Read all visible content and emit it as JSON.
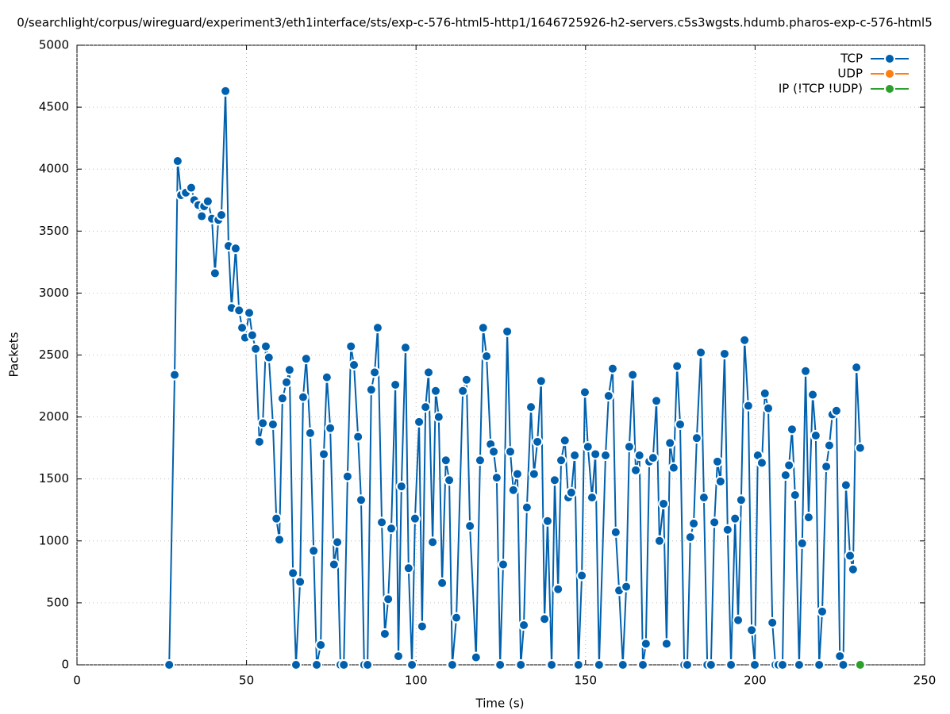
{
  "chart_data": {
    "type": "line",
    "title": "0/searchlight/corpus/wireguard/experiment3/eth1interface/sts/exp-c-576-html5-http1/1646725926-h2-servers.c5s3wgsts.hdumb.pharos-exp-c-576-html5",
    "x_label": "Time (s)",
    "y_label": "Packets",
    "xlim": [
      0,
      250
    ],
    "ylim": [
      0,
      5000
    ],
    "xticks": [
      0,
      50,
      100,
      150,
      200,
      250
    ],
    "yticks": [
      0,
      500,
      1000,
      1500,
      2000,
      2500,
      3000,
      3500,
      4000,
      4500,
      5000
    ],
    "grid": true,
    "legend": "top-right",
    "series": [
      {
        "name": "TCP",
        "color": "#0060ad",
        "x": [
          27.2,
          28.8,
          29.7,
          30.7,
          32.1,
          33.7,
          34.6,
          35.8,
          36.8,
          37.5,
          38.6,
          39.8,
          40.7,
          41.7,
          42.6,
          43.8,
          44.7,
          45.6,
          46.8,
          47.8,
          48.7,
          49.6,
          50.8,
          51.7,
          52.7,
          53.8,
          54.8,
          55.7,
          56.6,
          57.8,
          58.8,
          59.7,
          60.6,
          61.8,
          62.7,
          63.7,
          64.6,
          65.8,
          66.7,
          67.6,
          68.8,
          69.8,
          70.7,
          71.9,
          72.8,
          73.7,
          74.7,
          75.8,
          76.8,
          77.7,
          78.7,
          79.8,
          80.8,
          81.7,
          82.9,
          83.8,
          84.7,
          85.7,
          86.8,
          87.8,
          88.7,
          89.9,
          90.8,
          91.8,
          92.7,
          93.9,
          94.8,
          95.7,
          96.9,
          97.8,
          98.8,
          99.7,
          100.9,
          101.8,
          102.8,
          103.7,
          104.9,
          105.8,
          106.7,
          107.7,
          108.8,
          109.8,
          110.7,
          111.9,
          113.8,
          114.9,
          115.9,
          117.7,
          118.9,
          119.8,
          120.8,
          122.0,
          122.9,
          123.8,
          124.8,
          125.7,
          126.9,
          127.8,
          128.7,
          129.9,
          130.9,
          131.8,
          132.7,
          133.9,
          134.8,
          135.8,
          136.9,
          137.9,
          138.8,
          140.0,
          140.9,
          141.9,
          142.8,
          143.9,
          144.9,
          145.8,
          146.8,
          147.9,
          148.9,
          149.8,
          150.7,
          151.9,
          152.9,
          154.0,
          155.9,
          156.8,
          158.0,
          158.9,
          159.9,
          161.0,
          162.0,
          162.9,
          163.9,
          164.8,
          165.9,
          166.9,
          167.8,
          168.8,
          169.9,
          170.9,
          171.8,
          173.0,
          173.9,
          174.9,
          176.0,
          177.0,
          177.9,
          179.1,
          180.0,
          180.9,
          181.9,
          182.8,
          184.0,
          184.9,
          185.9,
          187.0,
          188.0,
          188.9,
          189.8,
          191.0,
          191.9,
          192.9,
          194.1,
          195.0,
          195.9,
          196.9,
          198.0,
          199.0,
          199.9,
          200.8,
          202.0,
          202.9,
          203.9,
          205.1,
          206.0,
          206.9,
          208.1,
          209.0,
          210.0,
          210.9,
          211.8,
          213.0,
          213.9,
          214.9,
          215.8,
          217.0,
          217.9,
          218.9,
          219.8,
          221.0,
          221.9,
          222.8,
          224.0,
          225.0,
          226.0,
          226.8,
          228.0,
          228.9,
          229.9,
          231.0
        ],
        "values": [
          0,
          2340,
          4065,
          3790,
          3810,
          3850,
          3750,
          3710,
          3620,
          3700,
          3740,
          3600,
          3160,
          3590,
          3630,
          4630,
          3380,
          2880,
          3360,
          2860,
          2720,
          2640,
          2840,
          2660,
          2550,
          1800,
          1950,
          2570,
          2480,
          1940,
          1180,
          1010,
          2150,
          2280,
          2380,
          740,
          0,
          670,
          2160,
          2470,
          1870,
          920,
          0,
          160,
          1700,
          2320,
          1910,
          810,
          990,
          0,
          0,
          1520,
          2570,
          2420,
          1840,
          1330,
          0,
          0,
          2220,
          2360,
          2720,
          1150,
          250,
          530,
          1100,
          2260,
          70,
          1440,
          2560,
          780,
          0,
          1180,
          1960,
          310,
          2080,
          2360,
          990,
          2210,
          2000,
          660,
          1650,
          1490,
          0,
          380,
          2210,
          2300,
          1120,
          60,
          1650,
          2720,
          2490,
          1780,
          1720,
          1510,
          0,
          810,
          2690,
          1720,
          1410,
          1540,
          0,
          320,
          1270,
          2080,
          1540,
          1800,
          2290,
          370,
          1160,
          0,
          1490,
          610,
          1650,
          1810,
          1350,
          1390,
          1690,
          0,
          720,
          2200,
          1760,
          1350,
          1700,
          0,
          1690,
          2170,
          2390,
          1070,
          600,
          0,
          630,
          1760,
          2340,
          1570,
          1690,
          0,
          170,
          1640,
          1670,
          2130,
          1000,
          1300,
          170,
          1790,
          1590,
          2410,
          1940,
          0,
          0,
          1030,
          1140,
          1830,
          2520,
          1350,
          0,
          0,
          1150,
          1640,
          1480,
          2510,
          1090,
          0,
          1180,
          360,
          1330,
          2620,
          2090,
          280,
          0,
          1690,
          1630,
          2190,
          2070,
          340,
          0,
          0,
          0,
          1530,
          1610,
          1900,
          1370,
          0,
          980,
          2370,
          1190,
          2180,
          1850,
          0,
          430,
          1600,
          1770,
          2020,
          2050,
          70,
          0,
          1450,
          880,
          770,
          2400,
          1750
        ]
      },
      {
        "name": "UDP",
        "color": "#ff7f0e",
        "x": [],
        "values": []
      },
      {
        "name": "IP (!TCP  !UDP)",
        "color": "#2ca02c",
        "x": [
          231.0
        ],
        "values": [
          0
        ]
      }
    ]
  }
}
